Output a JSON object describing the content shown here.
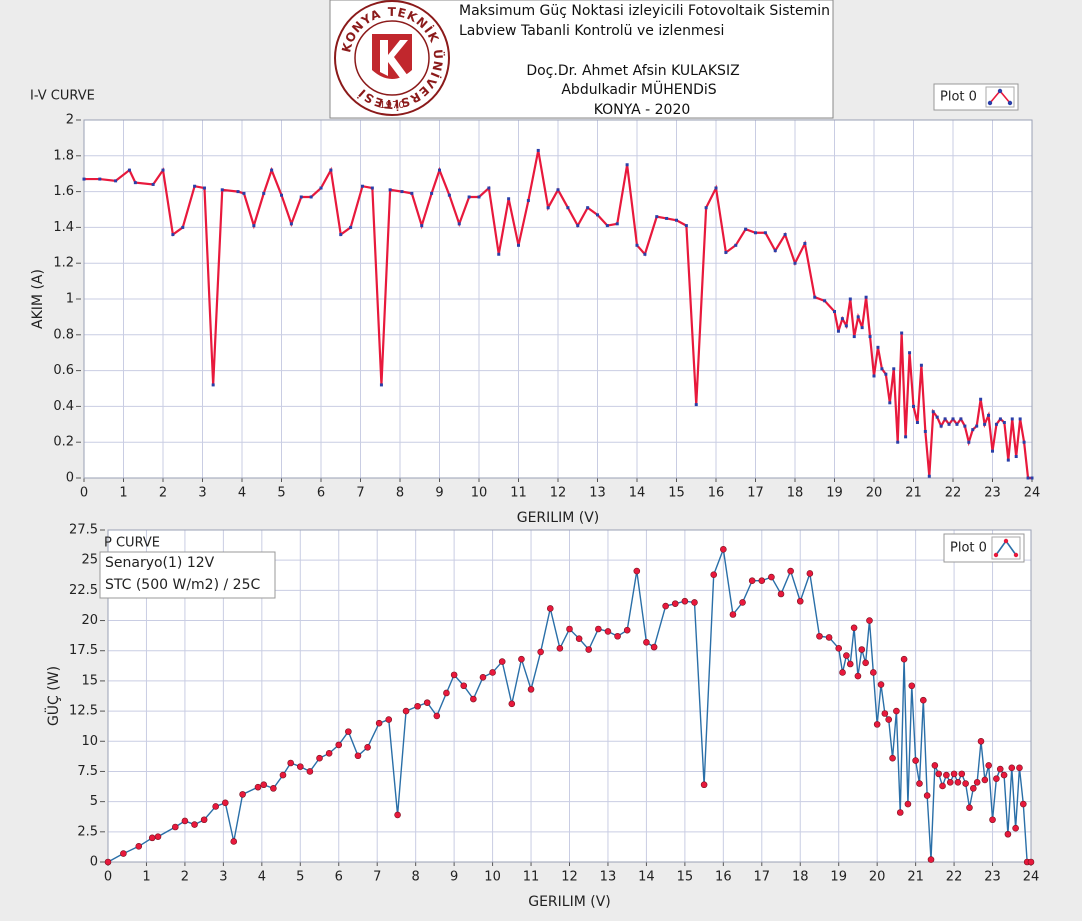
{
  "header": {
    "lines": [
      "Maksimum Güç Noktasi izleyicili Fotovoltaik Sistemin",
      "Labview Tabanli Kontrolü ve izlenmesi",
      "Doç.Dr. Ahmet Afsin KULAKSIZ",
      "Abdulkadir MÜHENDiS",
      "KONYA - 2020"
    ],
    "logo_text": "KONYA TEKNİK ÜNİVERSİTESİ",
    "logo_year": "1970"
  },
  "chart_data": [
    {
      "type": "line",
      "title": "I-V CURVE",
      "x_label": "GERILIM (V)",
      "y_label": "AKIM (A)",
      "x": [
        0,
        0.4,
        0.8,
        1.15,
        1.3,
        1.75,
        2.0,
        2.25,
        2.5,
        2.8,
        3.05,
        3.27,
        3.5,
        3.9,
        4.05,
        4.3,
        4.55,
        4.75,
        5.0,
        5.25,
        5.5,
        5.75,
        6.0,
        6.25,
        6.5,
        6.75,
        7.05,
        7.3,
        7.53,
        7.75,
        8.05,
        8.3,
        8.55,
        8.8,
        9.0,
        9.25,
        9.5,
        9.75,
        10.0,
        10.25,
        10.5,
        10.75,
        11.0,
        11.25,
        11.5,
        11.75,
        12.0,
        12.25,
        12.5,
        12.75,
        13.0,
        13.25,
        13.5,
        13.75,
        14.0,
        14.2,
        14.5,
        14.75,
        15.0,
        15.25,
        15.5,
        15.75,
        16.0,
        16.25,
        16.5,
        16.75,
        17.0,
        17.25,
        17.5,
        17.75,
        18.0,
        18.25,
        18.5,
        18.75,
        19.0,
        19.1,
        19.2,
        19.3,
        19.4,
        19.5,
        19.6,
        19.7,
        19.8,
        19.9,
        20.0,
        20.1,
        20.2,
        20.3,
        20.4,
        20.5,
        20.6,
        20.7,
        20.8,
        20.9,
        21.0,
        21.1,
        21.2,
        21.3,
        21.4,
        21.5,
        21.6,
        21.7,
        21.8,
        21.9,
        22.0,
        22.1,
        22.2,
        22.3,
        22.4,
        22.5,
        22.6,
        22.7,
        22.8,
        22.9,
        23.0,
        23.1,
        23.2,
        23.3,
        23.4,
        23.5,
        23.6,
        23.7,
        23.8,
        23.9,
        24.0
      ],
      "series": [
        {
          "name": "Plot 0",
          "color": "#e8193c",
          "marker_color": "#2b3fa8",
          "values": [
            1.67,
            1.67,
            1.66,
            1.72,
            1.65,
            1.64,
            1.72,
            1.36,
            1.4,
            1.63,
            1.62,
            0.52,
            1.61,
            1.6,
            1.59,
            1.41,
            1.59,
            1.72,
            1.58,
            1.42,
            1.57,
            1.57,
            1.62,
            1.72,
            1.36,
            1.4,
            1.63,
            1.62,
            0.52,
            1.61,
            1.6,
            1.59,
            1.41,
            1.59,
            1.72,
            1.58,
            1.42,
            1.57,
            1.57,
            1.62,
            1.25,
            1.56,
            1.3,
            1.55,
            1.83,
            1.51,
            1.61,
            1.51,
            1.41,
            1.51,
            1.47,
            1.41,
            1.42,
            1.75,
            1.3,
            1.25,
            1.46,
            1.45,
            1.44,
            1.41,
            0.41,
            1.51,
            1.62,
            1.26,
            1.3,
            1.39,
            1.37,
            1.37,
            1.27,
            1.36,
            1.2,
            1.31,
            1.01,
            0.99,
            0.93,
            0.82,
            0.89,
            0.85,
            1.0,
            0.79,
            0.9,
            0.84,
            1.01,
            0.79,
            0.57,
            0.73,
            0.61,
            0.58,
            0.42,
            0.61,
            0.2,
            0.81,
            0.23,
            0.7,
            0.4,
            0.31,
            0.63,
            0.26,
            0.01,
            0.37,
            0.34,
            0.29,
            0.33,
            0.3,
            0.33,
            0.3,
            0.33,
            0.29,
            0.2,
            0.27,
            0.29,
            0.44,
            0.3,
            0.35,
            0.15,
            0.3,
            0.33,
            0.31,
            0.1,
            0.33,
            0.12,
            0.33,
            0.2,
            0,
            0
          ]
        }
      ],
      "xlim": [
        0,
        24
      ],
      "ylim": [
        0,
        2
      ],
      "xticks": [
        0,
        1,
        2,
        3,
        4,
        5,
        6,
        7,
        8,
        9,
        10,
        11,
        12,
        13,
        14,
        15,
        16,
        17,
        18,
        19,
        20,
        21,
        22,
        23,
        24
      ],
      "yticks": [
        0,
        0.2,
        0.4,
        0.6,
        0.8,
        1,
        1.2,
        1.4,
        1.6,
        1.8,
        2
      ],
      "grid": true,
      "marker": "square"
    },
    {
      "type": "line",
      "title": "P CURVE",
      "x_label": "GERILIM (V)",
      "y_label": "GÜÇ (W)",
      "annotations": [
        "Senaryo(1)  12V",
        "STC (500 W/m2) / 25C"
      ],
      "x": [
        0,
        0.4,
        0.8,
        1.15,
        1.3,
        1.75,
        2.0,
        2.25,
        2.5,
        2.8,
        3.05,
        3.27,
        3.5,
        3.9,
        4.05,
        4.3,
        4.55,
        4.75,
        5.0,
        5.25,
        5.5,
        5.75,
        6.0,
        6.25,
        6.5,
        6.75,
        7.05,
        7.3,
        7.53,
        7.75,
        8.05,
        8.3,
        8.55,
        8.8,
        9.0,
        9.25,
        9.5,
        9.75,
        10.0,
        10.25,
        10.5,
        10.75,
        11.0,
        11.25,
        11.5,
        11.75,
        12.0,
        12.25,
        12.5,
        12.75,
        13.0,
        13.25,
        13.5,
        13.75,
        14.0,
        14.2,
        14.5,
        14.75,
        15.0,
        15.25,
        15.5,
        15.75,
        16.0,
        16.25,
        16.5,
        16.75,
        17.0,
        17.25,
        17.5,
        17.75,
        18.0,
        18.25,
        18.5,
        18.75,
        19.0,
        19.1,
        19.2,
        19.3,
        19.4,
        19.5,
        19.6,
        19.7,
        19.8,
        19.9,
        20.0,
        20.1,
        20.2,
        20.3,
        20.4,
        20.5,
        20.6,
        20.7,
        20.8,
        20.9,
        21.0,
        21.1,
        21.2,
        21.3,
        21.4,
        21.5,
        21.6,
        21.7,
        21.8,
        21.9,
        22.0,
        22.1,
        22.2,
        22.3,
        22.4,
        22.5,
        22.6,
        22.7,
        22.8,
        22.9,
        23.0,
        23.1,
        23.2,
        23.3,
        23.4,
        23.5,
        23.6,
        23.7,
        23.8,
        23.9,
        24.0
      ],
      "series": [
        {
          "name": "Plot 0",
          "color": "#2a6fa8",
          "marker_color": "#e8193c",
          "values": [
            0,
            0.7,
            1.3,
            2.0,
            2.1,
            2.9,
            3.4,
            3.1,
            3.5,
            4.6,
            4.9,
            1.7,
            5.6,
            6.2,
            6.4,
            6.1,
            7.2,
            8.2,
            7.9,
            7.5,
            8.6,
            9.0,
            9.7,
            10.8,
            8.8,
            9.5,
            11.5,
            11.8,
            3.9,
            12.5,
            12.9,
            13.2,
            12.1,
            14.0,
            15.5,
            14.6,
            13.5,
            15.3,
            15.7,
            16.6,
            13.1,
            16.8,
            14.3,
            17.4,
            21.0,
            17.7,
            19.3,
            18.5,
            17.6,
            19.3,
            19.1,
            18.7,
            19.2,
            24.1,
            18.2,
            17.8,
            21.2,
            21.4,
            21.6,
            21.5,
            6.4,
            23.8,
            25.9,
            20.5,
            21.5,
            23.3,
            23.3,
            23.6,
            22.2,
            24.1,
            21.6,
            23.9,
            18.7,
            18.6,
            17.7,
            15.7,
            17.1,
            16.4,
            19.4,
            15.4,
            17.6,
            16.5,
            20.0,
            15.7,
            11.4,
            14.7,
            12.3,
            11.8,
            8.6,
            12.5,
            4.1,
            16.8,
            4.8,
            14.6,
            8.4,
            6.5,
            13.4,
            5.5,
            0.2,
            8.0,
            7.3,
            6.3,
            7.2,
            6.6,
            7.3,
            6.6,
            7.3,
            6.5,
            4.5,
            6.1,
            6.6,
            10.0,
            6.8,
            8.0,
            3.5,
            6.9,
            7.7,
            7.2,
            2.3,
            7.8,
            2.8,
            7.8,
            4.8,
            0,
            0
          ]
        }
      ],
      "xlim": [
        0,
        24
      ],
      "ylim": [
        0,
        27.5
      ],
      "xticks": [
        0,
        1,
        2,
        3,
        4,
        5,
        6,
        7,
        8,
        9,
        10,
        11,
        12,
        13,
        14,
        15,
        16,
        17,
        18,
        19,
        20,
        21,
        22,
        23,
        24
      ],
      "yticks": [
        0,
        2.5,
        5,
        7.5,
        10,
        12.5,
        15,
        17.5,
        20,
        22.5,
        25,
        27.5
      ],
      "grid": true,
      "marker": "circle"
    }
  ]
}
